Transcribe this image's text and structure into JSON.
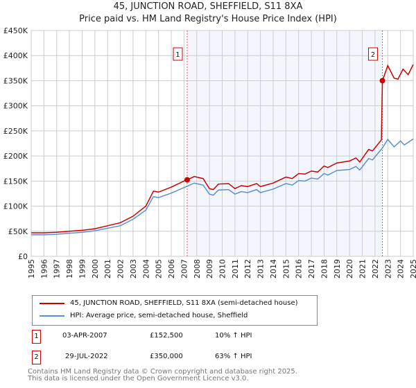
{
  "chart_data": {
    "type": "line",
    "title": "45, JUNCTION ROAD, SHEFFIELD, S11 8XA",
    "subtitle": "Price paid vs. HM Land Registry's House Price Index (HPI)",
    "ylim": [
      0,
      450000
    ],
    "xlim": [
      1995,
      2025
    ],
    "yticks": [
      {
        "v": 0,
        "l": "£0"
      },
      {
        "v": 50000,
        "l": "£50K"
      },
      {
        "v": 100000,
        "l": "£100K"
      },
      {
        "v": 150000,
        "l": "£150K"
      },
      {
        "v": 200000,
        "l": "£200K"
      },
      {
        "v": 250000,
        "l": "£250K"
      },
      {
        "v": 300000,
        "l": "£300K"
      },
      {
        "v": 350000,
        "l": "£350K"
      },
      {
        "v": 400000,
        "l": "£400K"
      },
      {
        "v": 450000,
        "l": "£450K"
      }
    ],
    "xticks": [
      "1995",
      "1996",
      "1997",
      "1998",
      "1999",
      "2000",
      "2001",
      "2002",
      "2003",
      "2004",
      "2005",
      "2006",
      "2007",
      "2008",
      "2009",
      "2010",
      "2011",
      "2012",
      "2013",
      "2014",
      "2015",
      "2016",
      "2017",
      "2018",
      "2019",
      "2020",
      "2021",
      "2022",
      "2023",
      "2024",
      "2025"
    ],
    "series": [
      {
        "name": "45, JUNCTION ROAD, SHEFFIELD, S11 8XA (semi-detached house)",
        "color": "#cc0000",
        "points": [
          [
            1995,
            47000
          ],
          [
            1996,
            47000
          ],
          [
            1997,
            48000
          ],
          [
            1998,
            50000
          ],
          [
            1999,
            52000
          ],
          [
            2000,
            55000
          ],
          [
            2001,
            61000
          ],
          [
            2002,
            67000
          ],
          [
            2003,
            80000
          ],
          [
            2004,
            100000
          ],
          [
            2004.6,
            130000
          ],
          [
            2005,
            128000
          ],
          [
            2006,
            138000
          ],
          [
            2007,
            150000
          ],
          [
            2007.25,
            152500
          ],
          [
            2007.8,
            159000
          ],
          [
            2008.5,
            155000
          ],
          [
            2009,
            135000
          ],
          [
            2009.3,
            133000
          ],
          [
            2009.7,
            144000
          ],
          [
            2010.5,
            145000
          ],
          [
            2011,
            135000
          ],
          [
            2011.5,
            141000
          ],
          [
            2012,
            139000
          ],
          [
            2012.7,
            145000
          ],
          [
            2013,
            139000
          ],
          [
            2014,
            146000
          ],
          [
            2015,
            158000
          ],
          [
            2015.5,
            155000
          ],
          [
            2016,
            165000
          ],
          [
            2016.5,
            164000
          ],
          [
            2017,
            170000
          ],
          [
            2017.5,
            168000
          ],
          [
            2018,
            180000
          ],
          [
            2018.3,
            177000
          ],
          [
            2019,
            186000
          ],
          [
            2020,
            190000
          ],
          [
            2020.5,
            196000
          ],
          [
            2020.8,
            188000
          ],
          [
            2021.5,
            213000
          ],
          [
            2021.8,
            210000
          ],
          [
            2022.5,
            232000
          ],
          [
            2022.58,
            350000
          ],
          [
            2023,
            380000
          ],
          [
            2023.5,
            355000
          ],
          [
            2023.8,
            353000
          ],
          [
            2024.2,
            373000
          ],
          [
            2024.6,
            362000
          ],
          [
            2025,
            382000
          ]
        ]
      },
      {
        "name": "HPI: Average price, semi-detached house, Sheffield",
        "color": "#5b8fd4",
        "points": [
          [
            1995,
            43000
          ],
          [
            1996,
            43000
          ],
          [
            1997,
            44000
          ],
          [
            1998,
            46000
          ],
          [
            1999,
            48000
          ],
          [
            2000,
            51000
          ],
          [
            2001,
            56000
          ],
          [
            2002,
            61000
          ],
          [
            2003,
            74000
          ],
          [
            2004,
            92000
          ],
          [
            2004.6,
            119000
          ],
          [
            2005,
            117000
          ],
          [
            2006,
            126000
          ],
          [
            2007,
            137000
          ],
          [
            2007.8,
            146000
          ],
          [
            2008.5,
            142000
          ],
          [
            2009,
            124000
          ],
          [
            2009.3,
            122000
          ],
          [
            2009.7,
            132000
          ],
          [
            2010.5,
            133000
          ],
          [
            2011,
            124000
          ],
          [
            2011.5,
            129000
          ],
          [
            2012,
            127000
          ],
          [
            2012.7,
            133000
          ],
          [
            2013,
            127000
          ],
          [
            2014,
            134000
          ],
          [
            2015,
            145000
          ],
          [
            2015.5,
            142000
          ],
          [
            2016,
            151000
          ],
          [
            2016.5,
            150000
          ],
          [
            2017,
            156000
          ],
          [
            2017.5,
            154000
          ],
          [
            2018,
            165000
          ],
          [
            2018.3,
            162000
          ],
          [
            2019,
            171000
          ],
          [
            2020,
            173000
          ],
          [
            2020.5,
            179000
          ],
          [
            2020.8,
            172000
          ],
          [
            2021.5,
            195000
          ],
          [
            2021.8,
            192000
          ],
          [
            2022.58,
            216000
          ],
          [
            2023,
            233000
          ],
          [
            2023.5,
            218000
          ],
          [
            2024,
            230000
          ],
          [
            2024.3,
            222000
          ],
          [
            2025,
            234000
          ]
        ]
      }
    ],
    "sales": [
      {
        "label": "1",
        "x": 2007.25,
        "y": 152500
      },
      {
        "label": "2",
        "x": 2022.58,
        "y": 350000
      }
    ]
  },
  "table": [
    {
      "num": "1",
      "date": "03-APR-2007",
      "price": "£152,500",
      "hpi": "10% ↑ HPI"
    },
    {
      "num": "2",
      "date": "29-JUL-2022",
      "price": "£350,000",
      "hpi": "63% ↑ HPI"
    }
  ],
  "footer": {
    "line1": "Contains HM Land Registry data © Crown copyright and database right 2025.",
    "line2": "This data is licensed under the Open Government Licence v3.0."
  }
}
